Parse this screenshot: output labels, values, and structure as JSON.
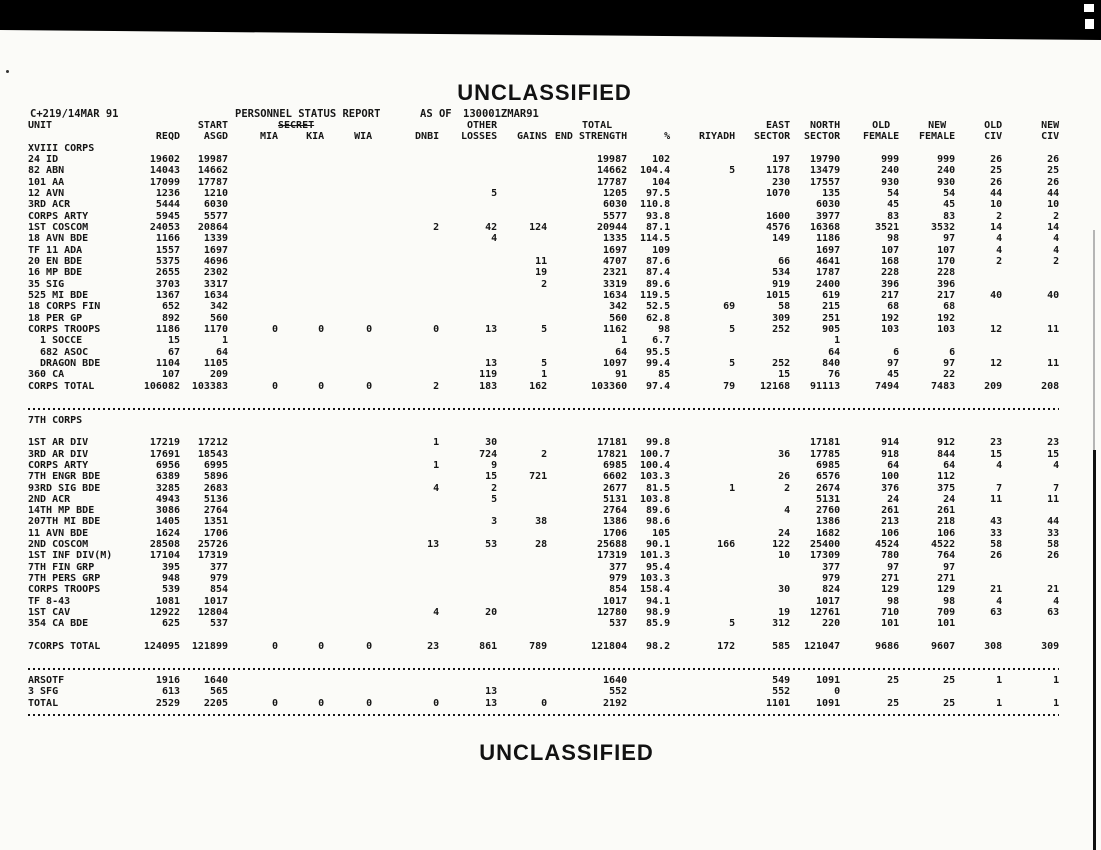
{
  "page": {
    "classification_top": "UNCLASSIFIED",
    "classification_bottom": "UNCLASSIFIED",
    "report_id": "C+219/14MAR 91",
    "report_title": "PERSONNEL STATUS REPORT",
    "as_of_label": "AS OF",
    "as_of_value": "130001ZMAR91"
  },
  "columns": [
    {
      "key": "unit",
      "line1": "UNIT",
      "line2": ""
    },
    {
      "key": "reqd",
      "line1": "",
      "line2": "REQD"
    },
    {
      "key": "asgd",
      "line1": "START",
      "line2": "ASGD"
    },
    {
      "key": "mia",
      "line1": "",
      "line2": "MIA"
    },
    {
      "key": "kia",
      "line1": "SECRET",
      "line2": "KIA",
      "struck": true
    },
    {
      "key": "wia",
      "line1": "",
      "line2": "WIA"
    },
    {
      "key": "dnbi",
      "line1": "",
      "line2": "DNBI"
    },
    {
      "key": "losses",
      "line1": "OTHER",
      "line2": "LOSSES"
    },
    {
      "key": "gains",
      "line1": "",
      "line2": "GAINS"
    },
    {
      "key": "end",
      "line1": "TOTAL",
      "line2": "END STRENGTH"
    },
    {
      "key": "pct",
      "line1": "",
      "line2": "%"
    },
    {
      "key": "riyadh",
      "line1": "",
      "line2": "RIYADH"
    },
    {
      "key": "east",
      "line1": "EAST",
      "line2": "SECTOR"
    },
    {
      "key": "north",
      "line1": "NORTH",
      "line2": "SECTOR"
    },
    {
      "key": "oldf",
      "line1": "OLD",
      "line2": "FEMALE"
    },
    {
      "key": "newf",
      "line1": "NEW",
      "line2": "FEMALE"
    },
    {
      "key": "oldciv",
      "line1": "OLD",
      "line2": "CIV"
    },
    {
      "key": "newciv",
      "line1": "NEW",
      "line2": "CIV"
    }
  ],
  "body": [
    {
      "t": "sec",
      "label": "XVIII CORPS"
    },
    {
      "t": "row",
      "c": [
        "24 ID",
        "19602",
        "19987",
        "",
        "",
        "",
        "",
        "",
        "",
        "19987",
        "102",
        "",
        "197",
        "19790",
        "999",
        "999",
        "26",
        "26"
      ]
    },
    {
      "t": "row",
      "c": [
        "82 ABN",
        "14043",
        "14662",
        "",
        "",
        "",
        "",
        "",
        "",
        "14662",
        "104.4",
        "5",
        "1178",
        "13479",
        "240",
        "240",
        "25",
        "25"
      ]
    },
    {
      "t": "row",
      "c": [
        "101 AA",
        "17099",
        "17787",
        "",
        "",
        "",
        "",
        "",
        "",
        "17787",
        "104",
        "",
        "230",
        "17557",
        "930",
        "930",
        "26",
        "26"
      ]
    },
    {
      "t": "row",
      "c": [
        "12 AVN",
        "1236",
        "1210",
        "",
        "",
        "",
        "",
        "5",
        "",
        "1205",
        "97.5",
        "",
        "1070",
        "135",
        "54",
        "54",
        "44",
        "44"
      ]
    },
    {
      "t": "row",
      "c": [
        "3RD ACR",
        "5444",
        "6030",
        "",
        "",
        "",
        "",
        "",
        "",
        "6030",
        "110.8",
        "",
        "",
        "6030",
        "45",
        "45",
        "10",
        "10"
      ]
    },
    {
      "t": "row",
      "c": [
        "CORPS ARTY",
        "5945",
        "5577",
        "",
        "",
        "",
        "",
        "",
        "",
        "5577",
        "93.8",
        "",
        "1600",
        "3977",
        "83",
        "83",
        "2",
        "2"
      ]
    },
    {
      "t": "row",
      "c": [
        "1ST COSCOM",
        "24053",
        "20864",
        "",
        "",
        "",
        "2",
        "42",
        "124",
        "20944",
        "87.1",
        "",
        "4576",
        "16368",
        "3521",
        "3532",
        "14",
        "14"
      ]
    },
    {
      "t": "row",
      "c": [
        "18 AVN BDE",
        "1166",
        "1339",
        "",
        "",
        "",
        "",
        "4",
        "",
        "1335",
        "114.5",
        "",
        "149",
        "1186",
        "98",
        "97",
        "4",
        "4"
      ]
    },
    {
      "t": "row",
      "c": [
        "TF 11 ADA",
        "1557",
        "1697",
        "",
        "",
        "",
        "",
        "",
        "",
        "1697",
        "109",
        "",
        "",
        "1697",
        "107",
        "107",
        "4",
        "4"
      ]
    },
    {
      "t": "row",
      "c": [
        "20 EN BDE",
        "5375",
        "4696",
        "",
        "",
        "",
        "",
        "",
        "11",
        "4707",
        "87.6",
        "",
        "66",
        "4641",
        "168",
        "170",
        "2",
        "2"
      ]
    },
    {
      "t": "row",
      "c": [
        "16 MP BDE",
        "2655",
        "2302",
        "",
        "",
        "",
        "",
        "",
        "19",
        "2321",
        "87.4",
        "",
        "534",
        "1787",
        "228",
        "228",
        "",
        ""
      ]
    },
    {
      "t": "row",
      "c": [
        "35 SIG",
        "3703",
        "3317",
        "",
        "",
        "",
        "",
        "",
        "2",
        "3319",
        "89.6",
        "",
        "919",
        "2400",
        "396",
        "396",
        "",
        ""
      ]
    },
    {
      "t": "row",
      "c": [
        "525 MI BDE",
        "1367",
        "1634",
        "",
        "",
        "",
        "",
        "",
        "",
        "1634",
        "119.5",
        "",
        "1015",
        "619",
        "217",
        "217",
        "40",
        "40"
      ]
    },
    {
      "t": "row",
      "c": [
        "18 CORPS FIN",
        "652",
        "342",
        "",
        "",
        "",
        "",
        "",
        "",
        "342",
        "52.5",
        "69",
        "58",
        "215",
        "68",
        "68",
        "",
        ""
      ]
    },
    {
      "t": "row",
      "c": [
        "18 PER GP",
        "892",
        "560",
        "",
        "",
        "",
        "",
        "",
        "",
        "560",
        "62.8",
        "",
        "309",
        "251",
        "192",
        "192",
        "",
        ""
      ]
    },
    {
      "t": "row",
      "c": [
        "CORPS TROOPS",
        "1186",
        "1170",
        "0",
        "0",
        "0",
        "0",
        "13",
        "5",
        "1162",
        "98",
        "5",
        "252",
        "905",
        "103",
        "103",
        "12",
        "11"
      ]
    },
    {
      "t": "row",
      "c": [
        "  1 SOCCE",
        "15",
        "1",
        "",
        "",
        "",
        "",
        "",
        "",
        "1",
        "6.7",
        "",
        "",
        "1",
        "",
        "",
        "",
        ""
      ]
    },
    {
      "t": "row",
      "c": [
        "  682 ASOC",
        "67",
        "64",
        "",
        "",
        "",
        "",
        "",
        "",
        "64",
        "95.5",
        "",
        "",
        "64",
        "6",
        "6",
        "",
        ""
      ]
    },
    {
      "t": "row",
      "c": [
        "  DRAGON BDE",
        "1104",
        "1105",
        "",
        "",
        "",
        "",
        "13",
        "5",
        "1097",
        "99.4",
        "5",
        "252",
        "840",
        "97",
        "97",
        "12",
        "11"
      ]
    },
    {
      "t": "row",
      "c": [
        "360 CA",
        "107",
        "209",
        "",
        "",
        "",
        "",
        "119",
        "1",
        "91",
        "85",
        "",
        "15",
        "76",
        "45",
        "22",
        "",
        ""
      ]
    },
    {
      "t": "row",
      "c": [
        "CORPS TOTAL",
        "106082",
        "103383",
        "0",
        "0",
        "0",
        "2",
        "183",
        "162",
        "103360",
        "97.4",
        "79",
        "12168",
        "91113",
        "7494",
        "7483",
        "209",
        "208"
      ]
    },
    {
      "t": "blank"
    },
    {
      "t": "dots"
    },
    {
      "t": "sec",
      "label": "7TH CORPS"
    },
    {
      "t": "blank"
    },
    {
      "t": "row",
      "c": [
        "1ST AR DIV",
        "17219",
        "17212",
        "",
        "",
        "",
        "1",
        "30",
        "",
        "17181",
        "99.8",
        "",
        "",
        "17181",
        "914",
        "912",
        "23",
        "23"
      ]
    },
    {
      "t": "row",
      "c": [
        "3RD AR DIV",
        "17691",
        "18543",
        "",
        "",
        "",
        "",
        "724",
        "2",
        "17821",
        "100.7",
        "",
        "36",
        "17785",
        "918",
        "844",
        "15",
        "15"
      ]
    },
    {
      "t": "row",
      "c": [
        "CORPS ARTY",
        "6956",
        "6995",
        "",
        "",
        "",
        "1",
        "9",
        "",
        "6985",
        "100.4",
        "",
        "",
        "6985",
        "64",
        "64",
        "4",
        "4"
      ]
    },
    {
      "t": "row",
      "c": [
        "7TH ENGR BDE",
        "6389",
        "5896",
        "",
        "",
        "",
        "",
        "15",
        "721",
        "6602",
        "103.3",
        "",
        "26",
        "6576",
        "100",
        "112",
        "",
        ""
      ]
    },
    {
      "t": "row",
      "c": [
        "93RD SIG BDE",
        "3285",
        "2683",
        "",
        "",
        "",
        "4",
        "2",
        "",
        "2677",
        "81.5",
        "1",
        "2",
        "2674",
        "376",
        "375",
        "7",
        "7"
      ]
    },
    {
      "t": "row",
      "c": [
        "2ND ACR",
        "4943",
        "5136",
        "",
        "",
        "",
        "",
        "5",
        "",
        "5131",
        "103.8",
        "",
        "",
        "5131",
        "24",
        "24",
        "11",
        "11"
      ]
    },
    {
      "t": "row",
      "c": [
        "14TH MP BDE",
        "3086",
        "2764",
        "",
        "",
        "",
        "",
        "",
        "",
        "2764",
        "89.6",
        "",
        "4",
        "2760",
        "261",
        "261",
        "",
        ""
      ]
    },
    {
      "t": "row",
      "c": [
        "207TH MI BDE",
        "1405",
        "1351",
        "",
        "",
        "",
        "",
        "3",
        "38",
        "1386",
        "98.6",
        "",
        "",
        "1386",
        "213",
        "218",
        "43",
        "44"
      ]
    },
    {
      "t": "row",
      "c": [
        "11 AVN BDE",
        "1624",
        "1706",
        "",
        "",
        "",
        "",
        "",
        "",
        "1706",
        "105",
        "",
        "24",
        "1682",
        "106",
        "106",
        "33",
        "33"
      ]
    },
    {
      "t": "row",
      "c": [
        "2ND COSCOM",
        "28508",
        "25726",
        "",
        "",
        "",
        "13",
        "53",
        "28",
        "25688",
        "90.1",
        "166",
        "122",
        "25400",
        "4524",
        "4522",
        "58",
        "58"
      ]
    },
    {
      "t": "row",
      "c": [
        "1ST INF DIV(M)",
        "17104",
        "17319",
        "",
        "",
        "",
        "",
        "",
        "",
        "17319",
        "101.3",
        "",
        "10",
        "17309",
        "780",
        "764",
        "26",
        "26"
      ]
    },
    {
      "t": "row",
      "c": [
        "7TH FIN GRP",
        "395",
        "377",
        "",
        "",
        "",
        "",
        "",
        "",
        "377",
        "95.4",
        "",
        "",
        "377",
        "97",
        "97",
        "",
        ""
      ]
    },
    {
      "t": "row",
      "c": [
        "7TH PERS GRP",
        "948",
        "979",
        "",
        "",
        "",
        "",
        "",
        "",
        "979",
        "103.3",
        "",
        "",
        "979",
        "271",
        "271",
        "",
        ""
      ]
    },
    {
      "t": "row",
      "c": [
        "CORPS TROOPS",
        "539",
        "854",
        "",
        "",
        "",
        "",
        "",
        "",
        "854",
        "158.4",
        "",
        "30",
        "824",
        "129",
        "129",
        "21",
        "21"
      ]
    },
    {
      "t": "row",
      "c": [
        "TF 8-43",
        "1081",
        "1017",
        "",
        "",
        "",
        "",
        "",
        "",
        "1017",
        "94.1",
        "",
        "",
        "1017",
        "98",
        "98",
        "4",
        "4"
      ]
    },
    {
      "t": "row",
      "c": [
        "1ST CAV",
        "12922",
        "12804",
        "",
        "",
        "",
        "4",
        "20",
        "",
        "12780",
        "98.9",
        "",
        "19",
        "12761",
        "710",
        "709",
        "63",
        "63"
      ]
    },
    {
      "t": "row",
      "c": [
        "354 CA BDE",
        "625",
        "537",
        "",
        "",
        "",
        "",
        "",
        "",
        "537",
        "85.9",
        "5",
        "312",
        "220",
        "101",
        "101",
        "",
        ""
      ]
    },
    {
      "t": "blank"
    },
    {
      "t": "row",
      "c": [
        "7CORPS TOTAL",
        "124095",
        "121899",
        "0",
        "0",
        "0",
        "23",
        "861",
        "789",
        "121804",
        "98.2",
        "172",
        "585",
        "121047",
        "9686",
        "9607",
        "308",
        "309"
      ]
    },
    {
      "t": "blank"
    },
    {
      "t": "dots"
    },
    {
      "t": "row",
      "c": [
        "ARSOTF",
        "1916",
        "1640",
        "",
        "",
        "",
        "",
        "",
        "",
        "1640",
        "",
        "",
        "549",
        "1091",
        "25",
        "25",
        "1",
        "1"
      ]
    },
    {
      "t": "row",
      "c": [
        "3 SFG",
        "613",
        "565",
        "",
        "",
        "",
        "",
        "13",
        "",
        "552",
        "",
        "",
        "552",
        "0",
        "",
        "",
        "",
        ""
      ]
    },
    {
      "t": "row",
      "c": [
        "TOTAL",
        "2529",
        "2205",
        "0",
        "0",
        "0",
        "0",
        "13",
        "0",
        "2192",
        "",
        "",
        "1101",
        "1091",
        "25",
        "25",
        "1",
        "1"
      ]
    },
    {
      "t": "dots"
    }
  ]
}
